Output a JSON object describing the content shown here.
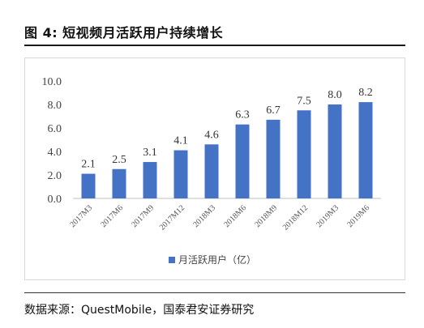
{
  "figure": {
    "title": "图 4:  短视频月活跃用户持续增长",
    "source": "数据来源：QuestMobile，国泰君安证券研究"
  },
  "chart_data": {
    "type": "bar",
    "categories": [
      "2017M3",
      "2017M6",
      "2017M9",
      "2017M12",
      "2018M3",
      "2018M6",
      "2018M9",
      "2018M12",
      "2019M3",
      "2019M6"
    ],
    "series": [
      {
        "name": "月活跃用户（亿）",
        "values": [
          2.1,
          2.5,
          3.1,
          4.1,
          4.6,
          6.3,
          6.7,
          7.5,
          8.0,
          8.2
        ],
        "labels": [
          "2.1",
          "2.5",
          "3.1",
          "4.1",
          "4.6",
          "6.3",
          "6.7",
          "7.5",
          "8.0",
          "8.2"
        ],
        "color": "#4472C4"
      }
    ],
    "yticks": [
      "0.0",
      "2.0",
      "4.0",
      "6.0",
      "8.0",
      "10.0"
    ],
    "ylim": [
      0,
      10
    ],
    "grid": false,
    "legend": "bottom"
  }
}
